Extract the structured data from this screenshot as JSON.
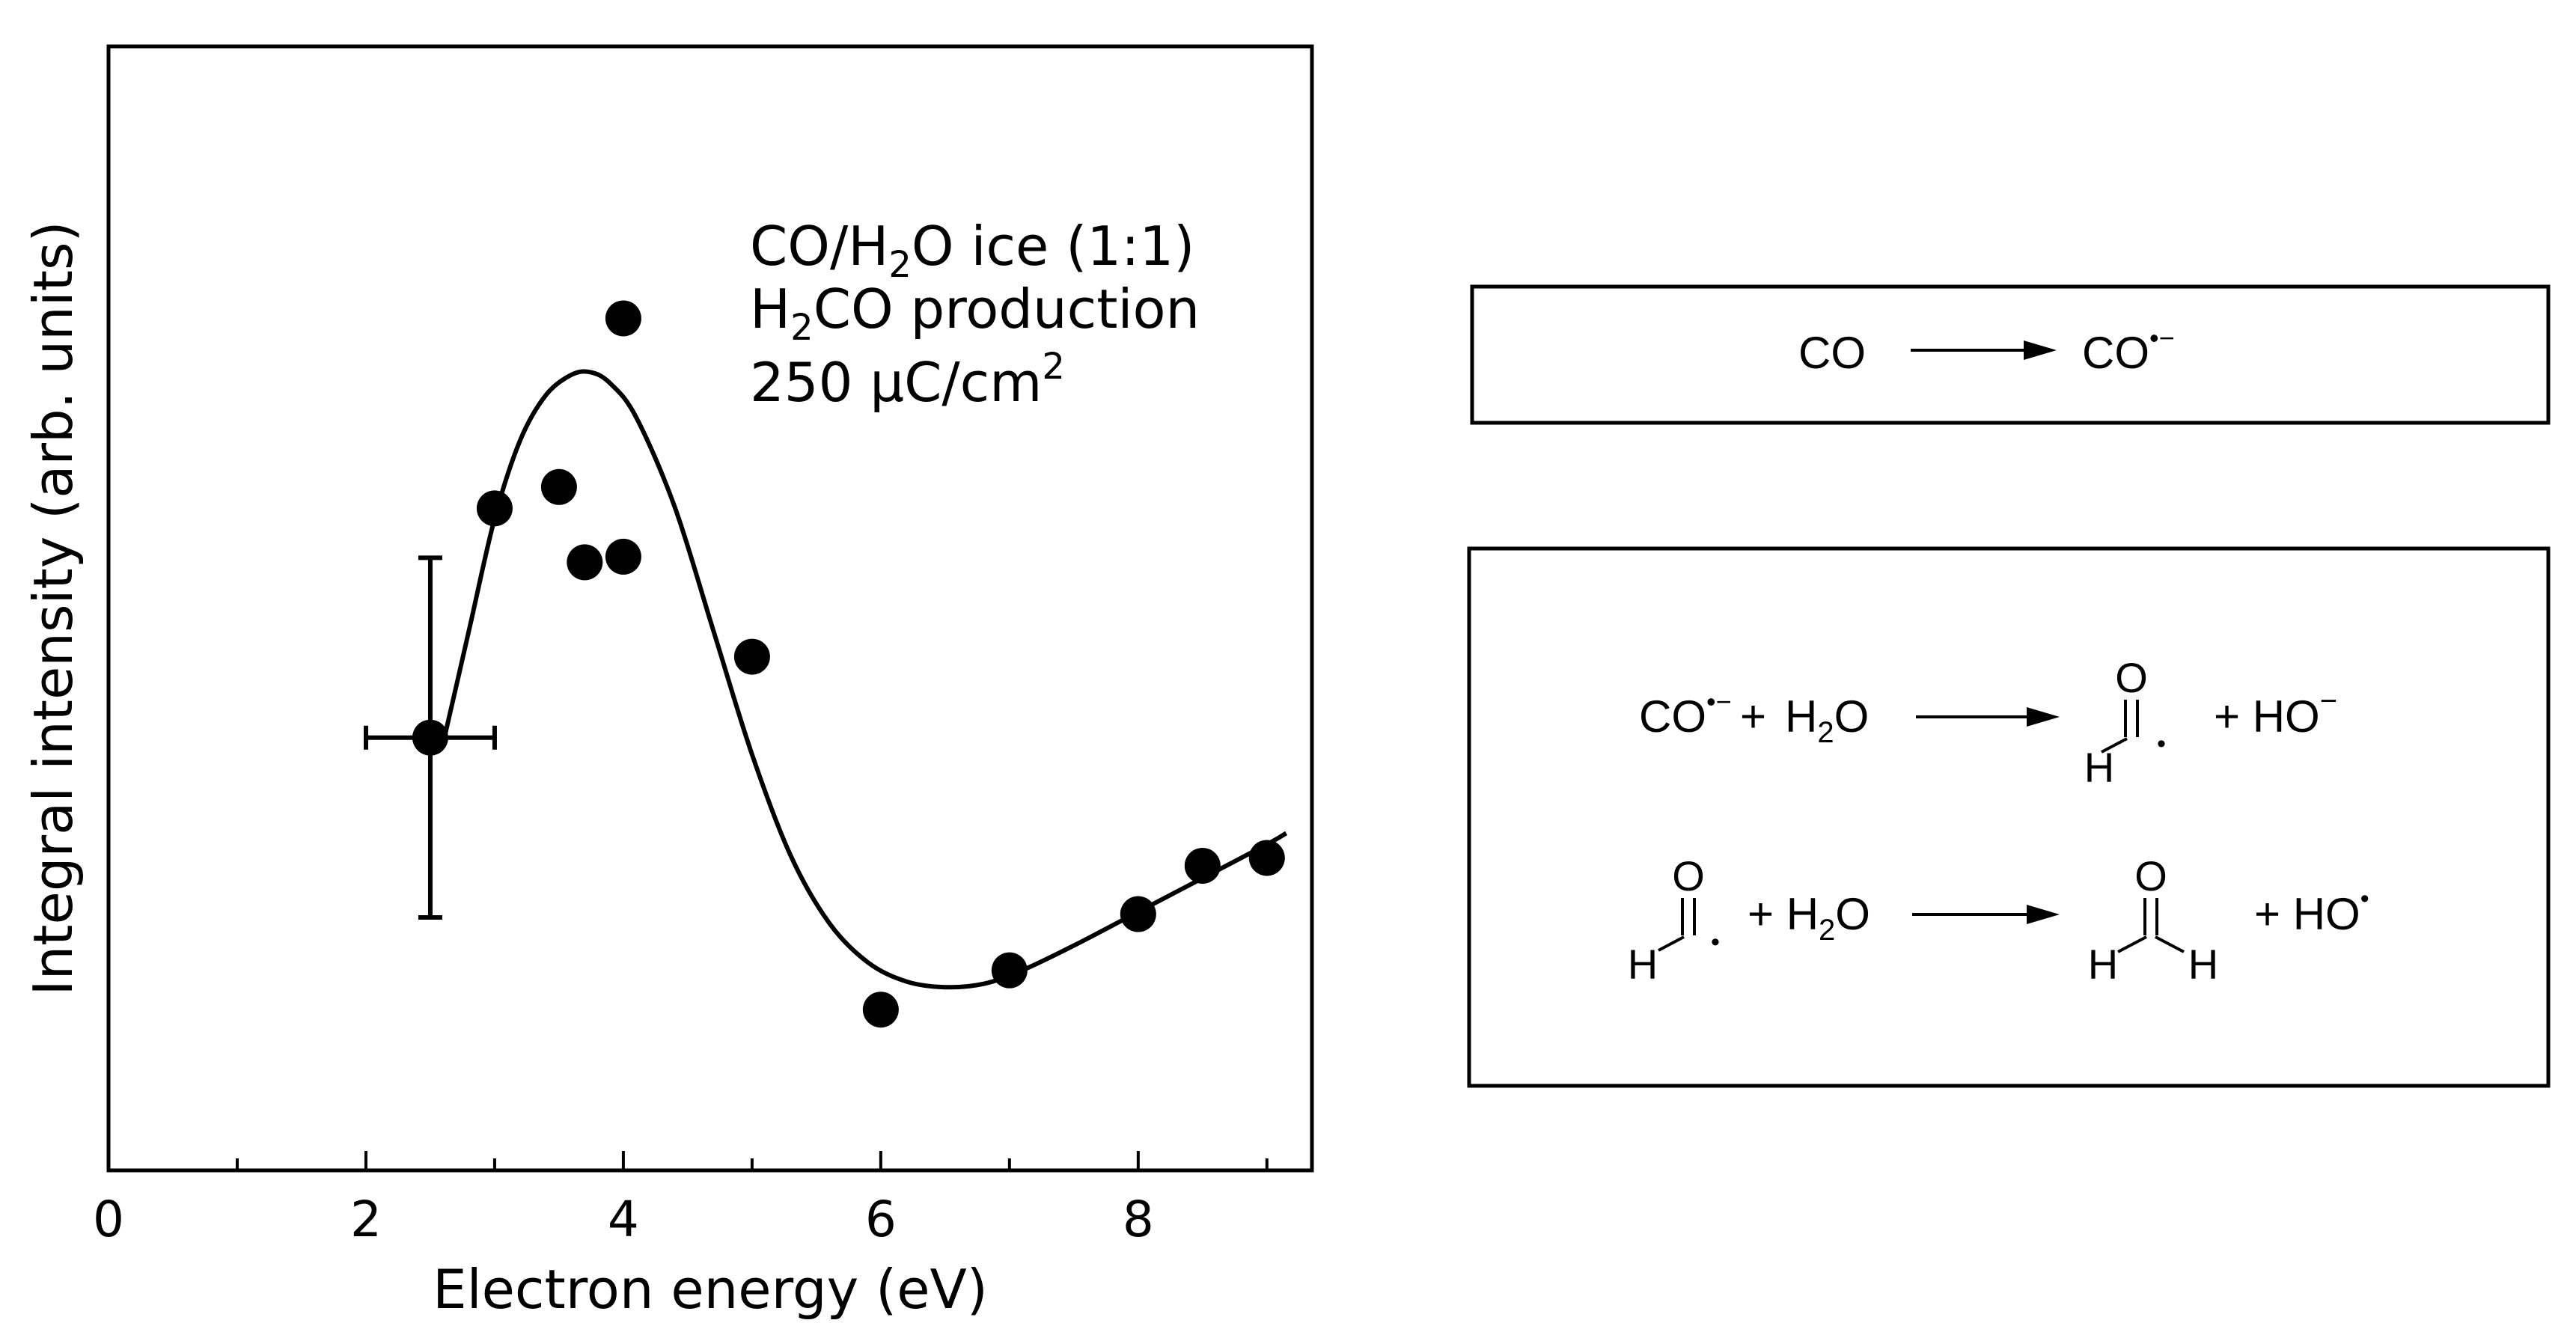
{
  "chart_data": {
    "type": "scatter",
    "xlabel": "Electron energy (eV)",
    "ylabel": "Integral intensity (arb. units)",
    "xlim": [
      0,
      9.35
    ],
    "ylim": [
      0,
      1
    ],
    "x_ticks": [
      "0",
      "2",
      "4",
      "6",
      "8"
    ],
    "x_tick_values": [
      0,
      2,
      4,
      6,
      8
    ],
    "y_ticks_labeled": false,
    "annotation": {
      "line1_pre": "CO/H",
      "line1_sub": "2",
      "line1_post": "O ice (1:1)",
      "line2_pre": "H",
      "line2_sub": "2",
      "line2_post": "CO production",
      "line3_pre": "250 µC/cm",
      "line3_sup": "2"
    },
    "points": [
      {
        "x": 2.5,
        "y": 0.385
      },
      {
        "x": 3.0,
        "y": 0.589
      },
      {
        "x": 3.5,
        "y": 0.608
      },
      {
        "x": 3.7,
        "y": 0.541
      },
      {
        "x": 4.0,
        "y": 0.758
      },
      {
        "x": 4.0,
        "y": 0.546
      },
      {
        "x": 5.0,
        "y": 0.457
      },
      {
        "x": 6.0,
        "y": 0.143
      },
      {
        "x": 7.0,
        "y": 0.178
      },
      {
        "x": 8.0,
        "y": 0.228
      },
      {
        "x": 8.5,
        "y": 0.271
      },
      {
        "x": 9.0,
        "y": 0.278
      }
    ],
    "error_bar": {
      "x": 2.5,
      "y": 0.385,
      "x_minus": 0.5,
      "x_plus": 0.5,
      "y_minus": 0.16,
      "y_plus": 0.16
    },
    "fit_curve": [
      {
        "x": 2.6,
        "y": 0.38
      },
      {
        "x": 2.8,
        "y": 0.48
      },
      {
        "x": 3.0,
        "y": 0.58
      },
      {
        "x": 3.2,
        "y": 0.65
      },
      {
        "x": 3.4,
        "y": 0.69
      },
      {
        "x": 3.6,
        "y": 0.708
      },
      {
        "x": 3.75,
        "y": 0.71
      },
      {
        "x": 3.9,
        "y": 0.7
      },
      {
        "x": 4.1,
        "y": 0.67
      },
      {
        "x": 4.4,
        "y": 0.59
      },
      {
        "x": 4.7,
        "y": 0.48
      },
      {
        "x": 5.0,
        "y": 0.37
      },
      {
        "x": 5.3,
        "y": 0.28
      },
      {
        "x": 5.6,
        "y": 0.22
      },
      {
        "x": 5.9,
        "y": 0.185
      },
      {
        "x": 6.2,
        "y": 0.168
      },
      {
        "x": 6.5,
        "y": 0.163
      },
      {
        "x": 6.8,
        "y": 0.166
      },
      {
        "x": 7.1,
        "y": 0.178
      },
      {
        "x": 7.5,
        "y": 0.2
      },
      {
        "x": 8.0,
        "y": 0.23
      },
      {
        "x": 8.5,
        "y": 0.26
      },
      {
        "x": 9.0,
        "y": 0.29
      },
      {
        "x": 9.15,
        "y": 0.3
      }
    ]
  },
  "scheme": {
    "reaction1": {
      "reactant": "CO",
      "product": "CO",
      "product_charge": "•−"
    },
    "reaction2": {
      "reactant1": "CO",
      "reactant1_charge": "•−",
      "plus": "+",
      "reactant2_pre": "H",
      "reactant2_sub": "2",
      "reactant2_post": "O",
      "product_o": "O",
      "product_h": "H",
      "product_radical": "•",
      "coproduct": "+ HO",
      "coproduct_charge": "−"
    },
    "reaction3": {
      "reactant_o": "O",
      "reactant_h": "H",
      "reactant_radical": "•",
      "reactant2": "+ H",
      "reactant2_sub": "2",
      "reactant2_post": "O",
      "product_o": "O",
      "product_h_left": "H",
      "product_h_right": "H",
      "coproduct": "+ HO",
      "coproduct_charge": "•"
    }
  }
}
